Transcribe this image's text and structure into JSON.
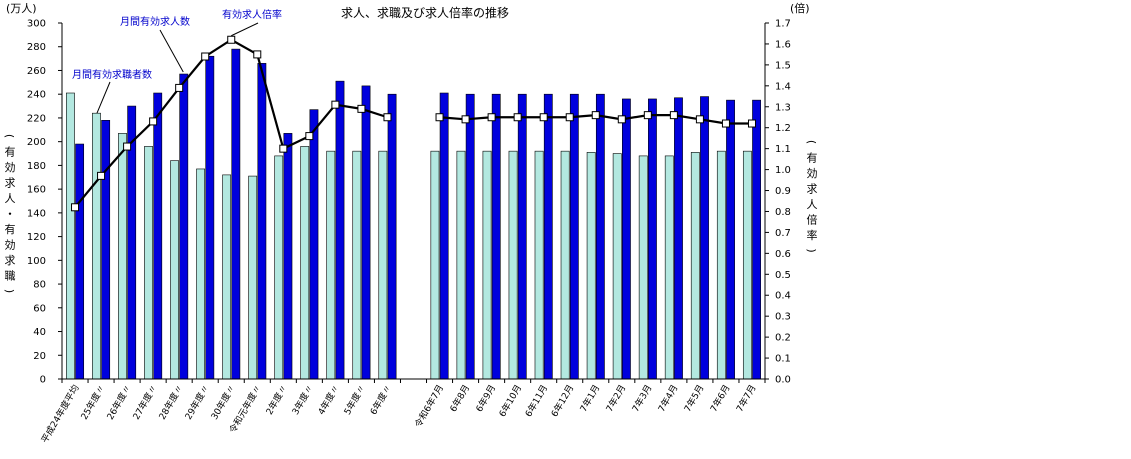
{
  "chart_data": {
    "type": "bar",
    "title": "求人、求職及び求人倍率の推移",
    "left_unit": "(万人)",
    "right_unit": "(倍)",
    "ylabel": "(有効求人・有効求職)",
    "y2label": "(有効求人倍率)",
    "ylim": [
      0,
      300
    ],
    "y2lim": [
      0.0,
      1.7
    ],
    "y_ticks": [
      "0",
      "20",
      "40",
      "60",
      "80",
      "100",
      "120",
      "140",
      "160",
      "180",
      "200",
      "220",
      "240",
      "260",
      "280",
      "300"
    ],
    "y2_ticks": [
      "0.0",
      "0.1",
      "0.2",
      "0.3",
      "0.4",
      "0.5",
      "0.6",
      "0.7",
      "0.8",
      "0.9",
      "1.0",
      "1.1",
      "1.2",
      "1.3",
      "1.4",
      "1.5",
      "1.6",
      "1.7"
    ],
    "categories": [
      "平成24年度平均",
      "25年度〃",
      "26年度〃",
      "27年度〃",
      "28年度〃",
      "29年度〃",
      "30年度〃",
      "令和元年度〃",
      "2年度〃",
      "3年度〃",
      "4年度〃",
      "5年度〃",
      "6年度〃",
      "",
      "令和6年7月",
      "6年8月",
      "6年9月",
      "6年10月",
      "6年11月",
      "6年12月",
      "7年1月",
      "7年2月",
      "7年3月",
      "7年4月",
      "7年5月",
      "7年6月",
      "7年7月"
    ],
    "series": [
      {
        "name": "月間有効求職者数",
        "color": "#b3e8e0",
        "axis": "left",
        "values": [
          241,
          224,
          207,
          196,
          184,
          177,
          172,
          171,
          188,
          196,
          192,
          192,
          192,
          null,
          192,
          192,
          192,
          192,
          192,
          192,
          191,
          190,
          188,
          188,
          191,
          192,
          192
        ]
      },
      {
        "name": "月間有効求人数",
        "color": "#0000dd",
        "axis": "left",
        "values": [
          198,
          218,
          230,
          241,
          257,
          272,
          278,
          266,
          207,
          227,
          251,
          247,
          240,
          null,
          241,
          240,
          240,
          240,
          240,
          240,
          240,
          236,
          236,
          237,
          238,
          235,
          235
        ]
      },
      {
        "name": "有効求人倍率",
        "color": "#000000",
        "axis": "right",
        "type": "line",
        "values": [
          0.82,
          0.97,
          1.11,
          1.23,
          1.39,
          1.54,
          1.62,
          1.55,
          1.1,
          1.16,
          1.31,
          1.29,
          1.25,
          null,
          1.25,
          1.24,
          1.25,
          1.25,
          1.25,
          1.25,
          1.26,
          1.24,
          1.26,
          1.26,
          1.24,
          1.22,
          1.22
        ]
      }
    ],
    "annotations": [
      {
        "text": "月間有効求職者数",
        "series": 0
      },
      {
        "text": "月間有効求人数",
        "series": 1
      },
      {
        "text": "有効求人倍率",
        "series": 2
      }
    ],
    "grid": false,
    "legend": "none"
  }
}
